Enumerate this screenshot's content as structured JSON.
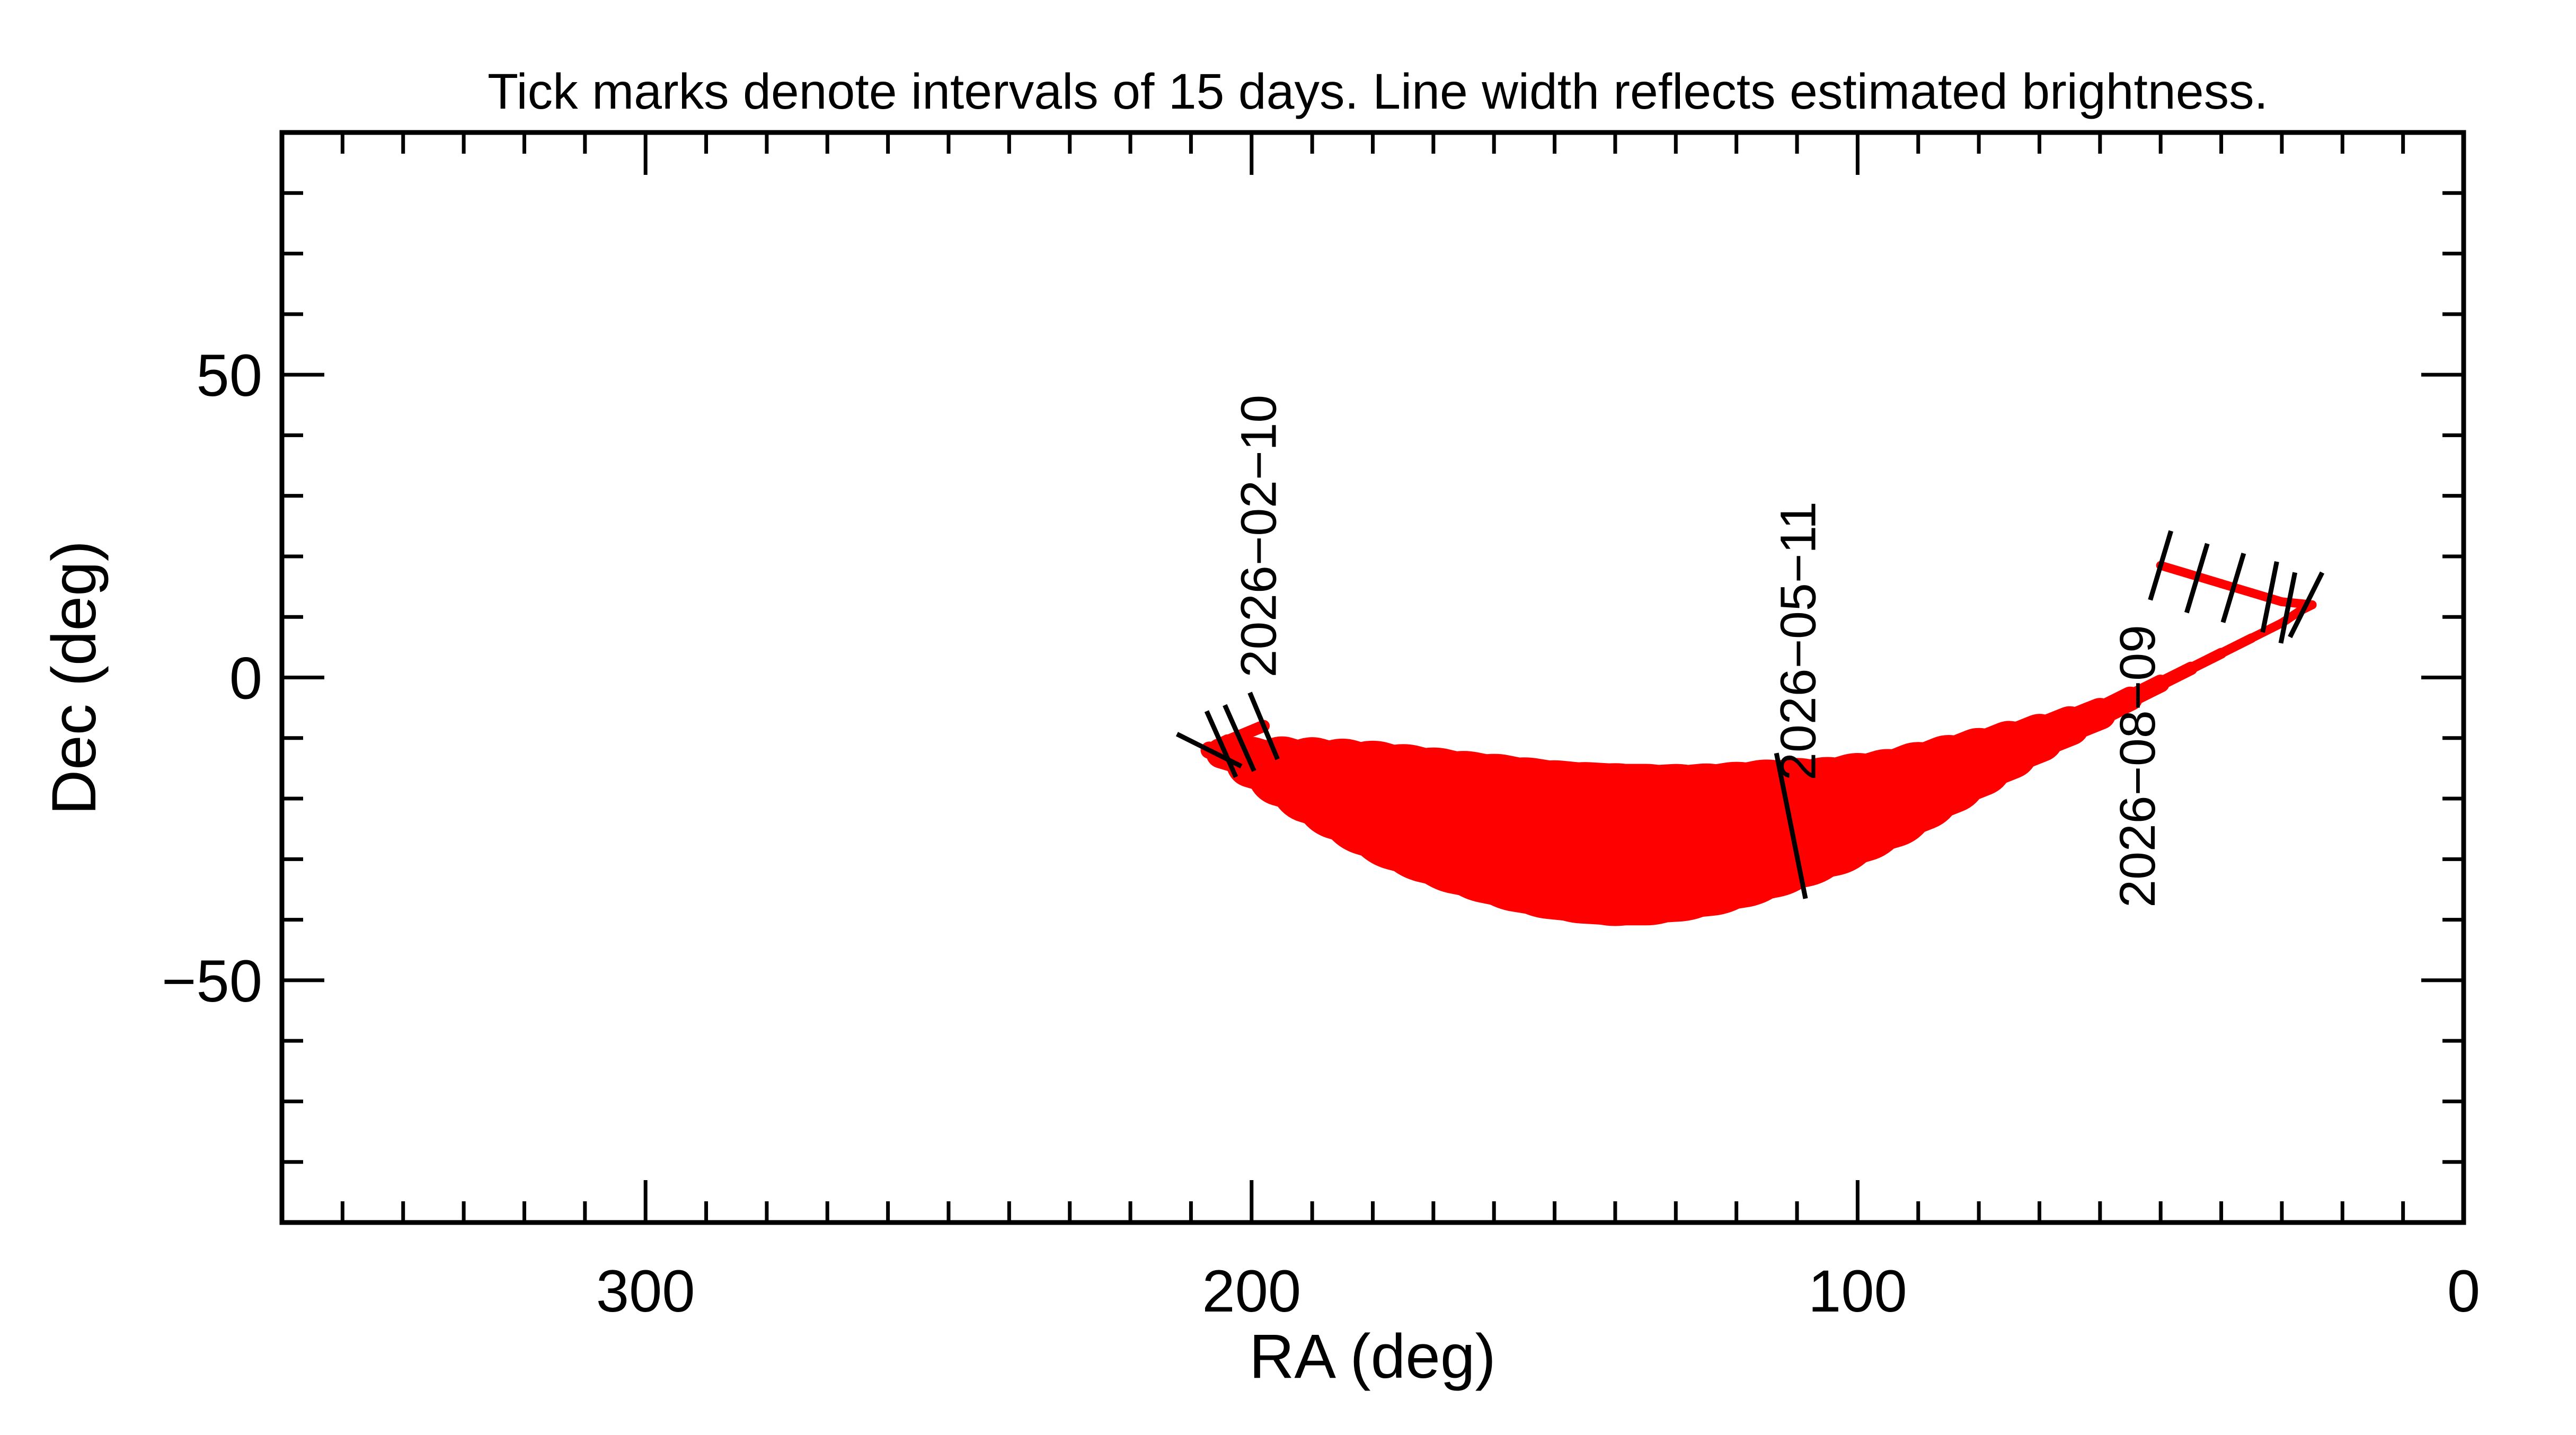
{
  "chart_data": {
    "type": "line",
    "title": "Tick marks denote intervals of 15 days.  Line width reflects estimated brightness.",
    "xlabel": "RA (deg)",
    "ylabel": "Dec (deg)",
    "xlim": [
      360,
      0
    ],
    "ylim": [
      -90,
      90
    ],
    "x_reversed": true,
    "xticks": [
      300,
      200,
      100,
      0
    ],
    "yticks": [
      50,
      0,
      -50
    ],
    "xtick_labels": [
      "300",
      "200",
      "100",
      "0"
    ],
    "ytick_labels": [
      "50",
      "0",
      "−50"
    ],
    "x_minor_step": 10,
    "y_minor_step": 10,
    "grid": false,
    "colors": {
      "track": "#ff0000",
      "ticks": "#000000",
      "frame": "#000000"
    },
    "series": [
      {
        "points": [
          [
            198,
            -8.0,
            0.9
          ],
          [
            204,
            -10.5,
            1.0
          ],
          [
            207,
            -12.0,
            1.1
          ],
          [
            205,
            -12.5,
            1.6
          ],
          [
            200,
            -14.0,
            3.2
          ],
          [
            195,
            -15.5,
            4.8
          ],
          [
            190,
            -17.0,
            6.2
          ],
          [
            185,
            -18.5,
            7.4
          ],
          [
            180,
            -20.0,
            8.6
          ],
          [
            175,
            -21.5,
            9.6
          ],
          [
            170,
            -22.8,
            10.4
          ],
          [
            165,
            -24.0,
            11.0
          ],
          [
            160,
            -25.0,
            11.6
          ],
          [
            155,
            -26.0,
            12.0
          ],
          [
            150,
            -26.8,
            12.4
          ],
          [
            145,
            -27.3,
            12.6
          ],
          [
            140,
            -27.6,
            12.8
          ],
          [
            135,
            -27.6,
            12.6
          ],
          [
            130,
            -27.3,
            12.2
          ],
          [
            125,
            -26.8,
            11.8
          ],
          [
            120,
            -26.0,
            11.2
          ],
          [
            115,
            -25.0,
            10.6
          ],
          [
            110,
            -24.0,
            9.8
          ],
          [
            105,
            -23.0,
            9.0
          ],
          [
            100,
            -21.5,
            8.2
          ],
          [
            95,
            -20.0,
            7.4
          ],
          [
            90,
            -18.0,
            6.6
          ],
          [
            85,
            -16.0,
            5.8
          ],
          [
            80,
            -14.0,
            5.0
          ],
          [
            75,
            -12.0,
            4.2
          ],
          [
            70,
            -10.0,
            3.4
          ],
          [
            65,
            -8.0,
            2.8
          ],
          [
            60,
            -6.0,
            2.2
          ],
          [
            55,
            -3.5,
            1.6
          ],
          [
            50,
            -1.0,
            1.2
          ],
          [
            45,
            1.5,
            0.9
          ],
          [
            40,
            4.0,
            0.8
          ],
          [
            35,
            6.5,
            0.7
          ],
          [
            30,
            9.0,
            0.7
          ],
          [
            27,
            11.0,
            0.7
          ],
          [
            25,
            12.0,
            0.7
          ],
          [
            30,
            12.5,
            0.7
          ],
          [
            35,
            14.0,
            0.7
          ],
          [
            40,
            15.5,
            0.7
          ],
          [
            45,
            17.0,
            0.7
          ],
          [
            50,
            18.5,
            0.7
          ]
        ]
      }
    ],
    "tick_marks": [
      {
        "ra": 198,
        "dec": -8.0,
        "label": ""
      },
      {
        "ra": 202,
        "dec": -10.0,
        "label": ""
      },
      {
        "ra": 205,
        "dec": -11.0,
        "label": ""
      },
      {
        "ra": 207,
        "dec": -12.0,
        "label": ""
      },
      {
        "ra": 111,
        "dec": -24.5,
        "label": ""
      },
      {
        "ra": 29,
        "dec": 11.5,
        "label": ""
      },
      {
        "ra": 26,
        "dec": 12.0,
        "label": ""
      },
      {
        "ra": 32,
        "dec": 13.3,
        "label": ""
      },
      {
        "ra": 38,
        "dec": 14.8,
        "label": ""
      },
      {
        "ra": 44,
        "dec": 16.4,
        "label": ""
      },
      {
        "ra": 50,
        "dec": 18.5,
        "label": ""
      }
    ],
    "annotations": [
      {
        "text": "2026−02−10",
        "ra": 196,
        "dec": 0
      },
      {
        "text": "2026−05−11",
        "ra": 107,
        "dec": -17
      },
      {
        "text": "2026−08−09",
        "ra": 51,
        "dec": -38
      }
    ]
  }
}
